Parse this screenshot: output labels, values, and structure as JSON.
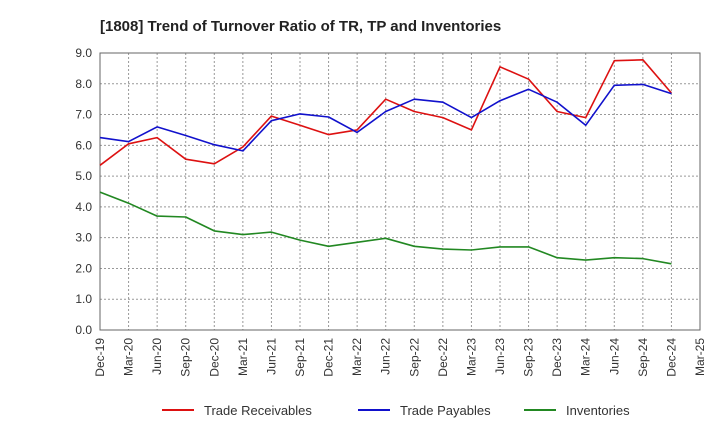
{
  "chart_data": {
    "type": "line",
    "title": "[1808]  Trend of Turnover Ratio of TR, TP and Inventories",
    "x": [
      "Dec-19",
      "Mar-20",
      "Jun-20",
      "Sep-20",
      "Dec-20",
      "Mar-21",
      "Jun-21",
      "Sep-21",
      "Dec-21",
      "Mar-22",
      "Jun-22",
      "Sep-22",
      "Dec-22",
      "Mar-23",
      "Jun-23",
      "Sep-23",
      "Dec-23",
      "Mar-24",
      "Jun-24",
      "Sep-24",
      "Dec-24"
    ],
    "x_tick_labels": [
      "Dec-19",
      "Mar-20",
      "Jun-20",
      "Sep-20",
      "Dec-20",
      "Mar-21",
      "Jun-21",
      "Sep-21",
      "Dec-21",
      "Mar-22",
      "Jun-22",
      "Sep-22",
      "Dec-22",
      "Mar-23",
      "Jun-23",
      "Sep-23",
      "Dec-23",
      "Mar-24",
      "Jun-24",
      "Sep-24",
      "Dec-24",
      "Mar-25"
    ],
    "y_tick_labels": [
      "0.0",
      "1.0",
      "2.0",
      "3.0",
      "4.0",
      "5.0",
      "6.0",
      "7.0",
      "8.0",
      "9.0"
    ],
    "ylim": [
      0,
      9
    ],
    "grid": true,
    "legend_position": "bottom",
    "xlabel": "",
    "ylabel": "",
    "series": [
      {
        "name": "Trade Receivables",
        "color": "#dd1111",
        "values": [
          5.35,
          6.05,
          6.25,
          5.55,
          5.4,
          5.95,
          6.95,
          6.65,
          6.35,
          6.5,
          7.5,
          7.1,
          6.9,
          6.5,
          8.55,
          8.15,
          7.1,
          6.9,
          8.75,
          8.78,
          7.7
        ]
      },
      {
        "name": "Trade Payables",
        "color": "#1111cc",
        "values": [
          6.25,
          6.12,
          6.6,
          6.32,
          6.02,
          5.82,
          6.8,
          7.02,
          6.92,
          6.42,
          7.1,
          7.5,
          7.4,
          6.9,
          7.45,
          7.82,
          7.4,
          6.65,
          7.95,
          7.98,
          7.68
        ]
      },
      {
        "name": "Inventories",
        "color": "#228822",
        "values": [
          4.48,
          4.12,
          3.7,
          3.67,
          3.22,
          3.1,
          3.18,
          2.92,
          2.72,
          2.85,
          2.98,
          2.72,
          2.63,
          2.6,
          2.7,
          2.7,
          2.35,
          2.27,
          2.35,
          2.32,
          2.15
        ]
      }
    ]
  }
}
